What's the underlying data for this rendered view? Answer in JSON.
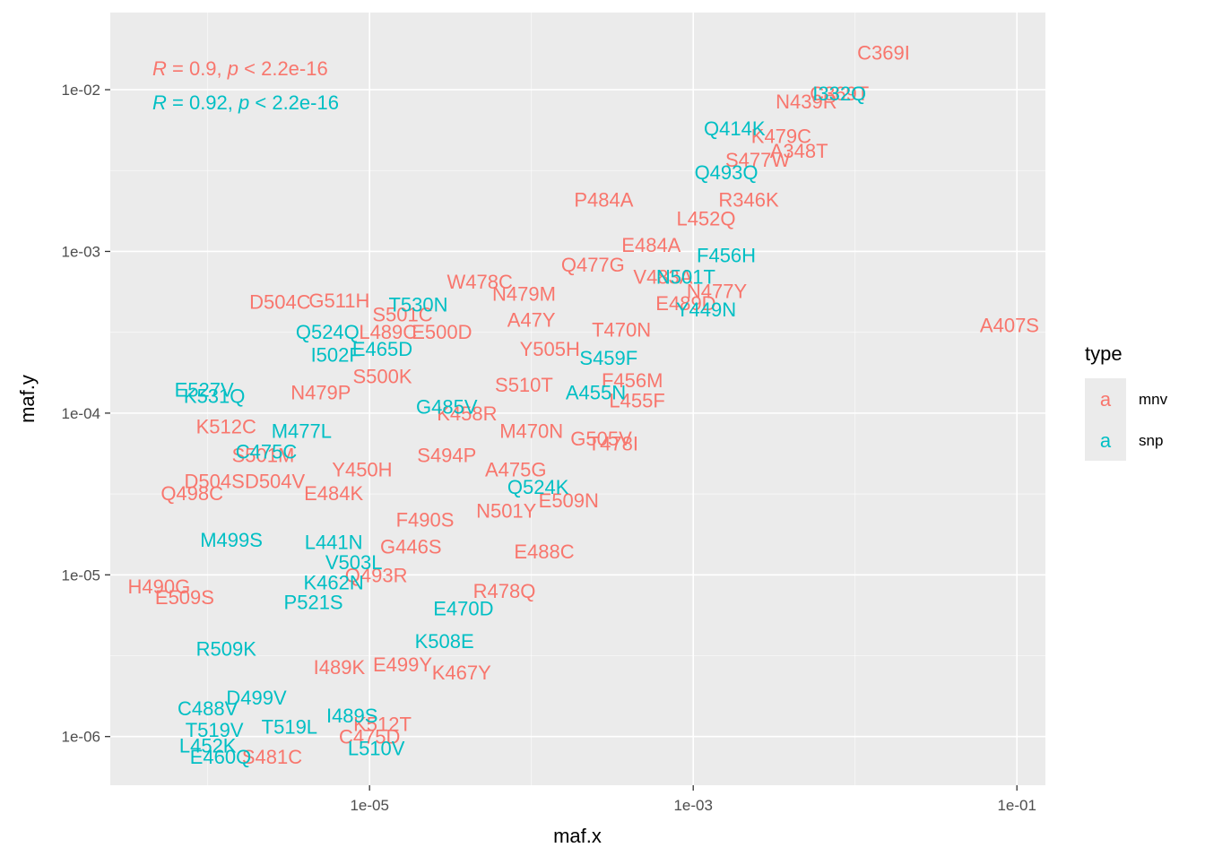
{
  "colors": {
    "mnv": "#F8766D",
    "snp": "#00BFC4",
    "panel_bg": "#EBEBEB",
    "grid": "#FFFFFF"
  },
  "chart_data": {
    "type": "scatter",
    "xlabel": "maf.x",
    "ylabel": "maf.y",
    "x_scale": "log10",
    "y_scale": "log10",
    "xlim": [
      2.5e-07,
      0.15
    ],
    "ylim": [
      5e-07,
      0.03
    ],
    "x_ticks": [
      {
        "value": 1e-05,
        "label": "1e-05"
      },
      {
        "value": 0.001,
        "label": "1e-03"
      },
      {
        "value": 0.1,
        "label": "1e-01"
      }
    ],
    "y_ticks": [
      {
        "value": 1e-06,
        "label": "1e-06"
      },
      {
        "value": 1e-05,
        "label": "1e-05"
      },
      {
        "value": 0.0001,
        "label": "1e-04"
      },
      {
        "value": 0.001,
        "label": "1e-03"
      },
      {
        "value": 0.01,
        "label": "1e-02"
      }
    ],
    "grid": true,
    "legend": {
      "title": "type",
      "position": "right",
      "key_glyph": "a",
      "entries": [
        {
          "name": "mnv",
          "color": "#F8766D"
        },
        {
          "name": "snp",
          "color": "#00BFC4"
        }
      ]
    },
    "annotations": [
      {
        "series": "mnv",
        "r": "0.9",
        "p": "2.2e-16",
        "text": " = 0.9, ",
        "text2": " < 2.2e-16"
      },
      {
        "series": "snp",
        "r": "0.92",
        "p": "2.2e-16",
        "text": " = 0.92, ",
        "text2": " < 2.2e-16"
      }
    ],
    "annotation_symbols": {
      "r": "R",
      "p": "p"
    },
    "series": [
      {
        "name": "mnv",
        "color": "#F8766D",
        "points": [
          {
            "label": "C369I",
            "x": 0.015,
            "y": 0.017
          },
          {
            "label": "C369T",
            "x": 0.008,
            "y": 0.0095
          },
          {
            "label": "A407S",
            "x": 0.09,
            "y": 0.00035
          },
          {
            "label": "D504C",
            "x": 2.8e-06,
            "y": 0.00049
          },
          {
            "label": "G511H",
            "x": 6.5e-06,
            "y": 0.0005
          },
          {
            "label": "S501C",
            "x": 1.6e-05,
            "y": 0.00041
          },
          {
            "label": "W478C",
            "x": 4.8e-05,
            "y": 0.00065
          },
          {
            "label": "Q477G",
            "x": 0.00024,
            "y": 0.00083
          },
          {
            "label": "P484A",
            "x": 0.00028,
            "y": 0.0021
          },
          {
            "label": "L489C",
            "x": 1.3e-05,
            "y": 0.00032
          },
          {
            "label": "E500D",
            "x": 2.8e-05,
            "y": 0.00032
          },
          {
            "label": "N479P",
            "x": 5e-06,
            "y": 0.000135
          },
          {
            "label": "S500K",
            "x": 1.2e-05,
            "y": 0.00017
          },
          {
            "label": "K512C",
            "x": 1.3e-06,
            "y": 8.3e-05
          },
          {
            "label": "D504S",
            "x": 1.1e-06,
            "y": 3.8e-05
          },
          {
            "label": "D504V",
            "x": 2.6e-06,
            "y": 3.8e-05
          },
          {
            "label": "Q498C",
            "x": 8e-07,
            "y": 3.2e-05
          },
          {
            "label": "S501M",
            "x": 2.2e-06,
            "y": 5.5e-05
          },
          {
            "label": "E488C",
            "x": 0.00012,
            "y": 1.4e-05
          },
          {
            "label": "E509N",
            "x": 0.00017,
            "y": 2.9e-05
          },
          {
            "label": "H490G",
            "x": 5e-07,
            "y": 8.5e-06
          },
          {
            "label": "E509S",
            "x": 7.2e-07,
            "y": 7.3e-06
          },
          {
            "label": "R478Q",
            "x": 6.8e-05,
            "y": 8e-06
          },
          {
            "label": "K467Y",
            "x": 3.7e-05,
            "y": 2.5e-06
          },
          {
            "label": "E499Y",
            "x": 1.6e-05,
            "y": 2.8e-06
          },
          {
            "label": "I489K",
            "x": 6.5e-06,
            "y": 2.7e-06
          },
          {
            "label": "K512T",
            "x": 1.2e-05,
            "y": 1.2e-06
          },
          {
            "label": "C475D",
            "x": 1e-05,
            "y": 1e-06
          },
          {
            "label": "S481C",
            "x": 2.5e-06,
            "y": 7.5e-07
          },
          {
            "label": "M470N",
            "x": 0.0001,
            "y": 7.8e-05
          },
          {
            "label": "Y450H",
            "x": 9e-06,
            "y": 4.5e-05
          },
          {
            "label": "S510T",
            "x": 9e-05,
            "y": 0.00015
          },
          {
            "label": "A47Y",
            "x": 0.0001,
            "y": 0.00038
          },
          {
            "label": "N479M",
            "x": 9e-05,
            "y": 0.00055
          },
          {
            "label": "K479C",
            "x": 0.0035,
            "y": 0.0052
          },
          {
            "label": "N439R",
            "x": 0.005,
            "y": 0.0085
          },
          {
            "label": "S477W",
            "x": 0.0025,
            "y": 0.0037
          },
          {
            "label": "N477Y",
            "x": 0.0014,
            "y": 0.00057
          },
          {
            "label": "E489D",
            "x": 0.0009,
            "y": 0.00048
          },
          {
            "label": "F456M",
            "x": 0.00042,
            "y": 0.00016
          },
          {
            "label": "G505V",
            "x": 0.00027,
            "y": 7e-05
          },
          {
            "label": "T478I",
            "x": 0.00032,
            "y": 6.5e-05
          },
          {
            "label": "A475G",
            "x": 8e-05,
            "y": 4.5e-05
          },
          {
            "label": "E484A",
            "x": 0.00055,
            "y": 0.0011
          },
          {
            "label": "L452Q",
            "x": 0.0012,
            "y": 0.0016
          },
          {
            "label": "V483A",
            "x": 0.00065,
            "y": 0.0007
          },
          {
            "label": "Y505H",
            "x": 0.00013,
            "y": 0.00025
          },
          {
            "label": "K458R",
            "x": 4e-05,
            "y": 0.0001
          },
          {
            "label": "S494P",
            "x": 3e-05,
            "y": 5.5e-05
          },
          {
            "label": "F490S",
            "x": 2.2e-05,
            "y": 2.2e-05
          },
          {
            "label": "G446S",
            "x": 1.8e-05,
            "y": 1.5e-05
          },
          {
            "label": "Q493R",
            "x": 1.1e-05,
            "y": 1e-05
          },
          {
            "label": "E484K",
            "x": 6e-06,
            "y": 3.2e-05
          },
          {
            "label": "N501Y",
            "x": 7e-05,
            "y": 2.5e-05
          },
          {
            "label": "L455F",
            "x": 0.00045,
            "y": 0.00012
          },
          {
            "label": "A348T",
            "x": 0.0045,
            "y": 0.0042
          },
          {
            "label": "R346K",
            "x": 0.0022,
            "y": 0.0021
          },
          {
            "label": "T470N",
            "x": 0.00036,
            "y": 0.00033
          }
        ]
      },
      {
        "name": "snp",
        "color": "#00BFC4",
        "points": [
          {
            "label": "I332Q",
            "x": 0.008,
            "y": 0.0095
          },
          {
            "label": "Q414K",
            "x": 0.0018,
            "y": 0.0058
          },
          {
            "label": "A455N",
            "x": 0.00025,
            "y": 0.000135
          },
          {
            "label": "E470D",
            "x": 3.8e-05,
            "y": 6.2e-06
          },
          {
            "label": "T530N",
            "x": 2e-05,
            "y": 0.00047
          },
          {
            "label": "Q524Q",
            "x": 5.5e-06,
            "y": 0.00032
          },
          {
            "label": "I502F",
            "x": 6.2e-06,
            "y": 0.00023
          },
          {
            "label": "E527V",
            "x": 9.5e-07,
            "y": 0.00014
          },
          {
            "label": "K531Q",
            "x": 1.1e-06,
            "y": 0.000128
          },
          {
            "label": "M477L",
            "x": 3.8e-06,
            "y": 7.8e-05
          },
          {
            "label": "C475C",
            "x": 2.3e-06,
            "y": 5.8e-05
          },
          {
            "label": "Q524K",
            "x": 0.00011,
            "y": 3.5e-05
          },
          {
            "label": "M499S",
            "x": 1.4e-06,
            "y": 1.65e-05
          },
          {
            "label": "K508E",
            "x": 2.9e-05,
            "y": 3.9e-06
          },
          {
            "label": "D499V",
            "x": 2e-06,
            "y": 1.75e-06
          },
          {
            "label": "I489S",
            "x": 7.8e-06,
            "y": 1.35e-06
          },
          {
            "label": "L510V",
            "x": 1.1e-05,
            "y": 8.5e-07
          },
          {
            "label": "T519L",
            "x": 3.2e-06,
            "y": 1.15e-06
          },
          {
            "label": "E460Q",
            "x": 1.2e-06,
            "y": 7.5e-07
          },
          {
            "label": "L452K",
            "x": 1e-06,
            "y": 8.8e-07
          },
          {
            "label": "T519V",
            "x": 1.1e-06,
            "y": 1.1e-06
          },
          {
            "label": "C488V",
            "x": 1e-06,
            "y": 1.5e-06
          },
          {
            "label": "R509K",
            "x": 1.3e-06,
            "y": 3.5e-06
          },
          {
            "label": "F456H",
            "x": 0.0016,
            "y": 0.00095
          },
          {
            "label": "Q493Q",
            "x": 0.0016,
            "y": 0.0031
          },
          {
            "label": "Y449N",
            "x": 0.0012,
            "y": 0.00044
          },
          {
            "label": "N501T",
            "x": 0.0009,
            "y": 0.0007
          },
          {
            "label": "E465D",
            "x": 1.2e-05,
            "y": 0.00025
          },
          {
            "label": "G485V",
            "x": 3e-05,
            "y": 0.00011
          },
          {
            "label": "L441N",
            "x": 6e-06,
            "y": 1.6e-05
          },
          {
            "label": "V503L",
            "x": 8e-06,
            "y": 1.2e-05
          },
          {
            "label": "K462N",
            "x": 6e-06,
            "y": 9e-06
          },
          {
            "label": "S459F",
            "x": 0.0003,
            "y": 0.00022
          },
          {
            "label": "P521S",
            "x": 4.5e-06,
            "y": 6.8e-06
          }
        ]
      }
    ]
  }
}
